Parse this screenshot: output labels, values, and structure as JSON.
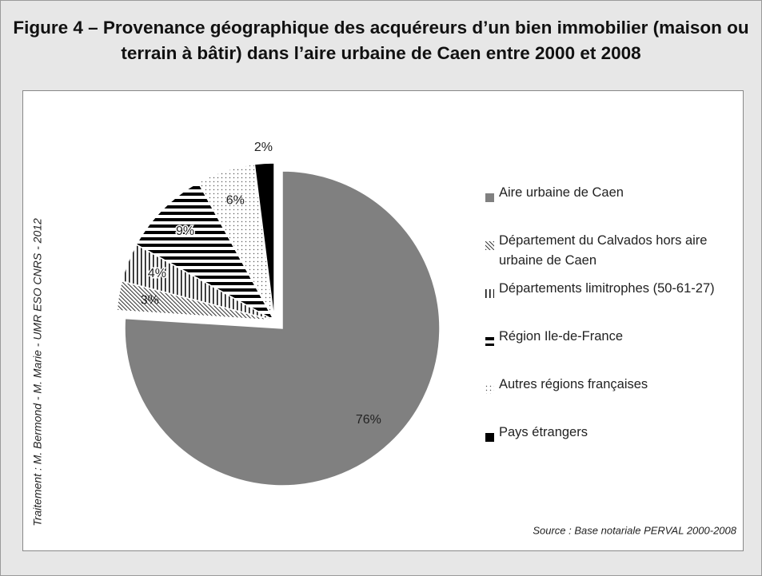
{
  "title": "Figure 4 – Provenance géographique des acquéreurs d’un bien immobilier (maison ou terrain à bâtir) dans l’aire urbaine de Caen entre 2000 et 2008",
  "chart_data": {
    "type": "pie",
    "categories": [
      "Aire urbaine de Caen",
      "Département du Calvados hors aire urbaine de Caen",
      "Départements limitrophes (50-61-27)",
      "Région Ile-de-France",
      "Autres régions françaises",
      "Pays étrangers"
    ],
    "values": [
      76,
      3,
      4,
      9,
      6,
      2
    ],
    "value_labels": [
      "76%",
      "3%",
      "4%",
      "9%",
      "6%",
      "2%"
    ],
    "fills": [
      "#808080",
      "diagonal",
      "vertical",
      "horizontal",
      "dots",
      "#000000"
    ],
    "credit": "Traitement : M. Bermond - M. Marie - UMR ESO CNRS - 2012",
    "source": "Source : Base notariale PERVAL 2000-2008"
  }
}
